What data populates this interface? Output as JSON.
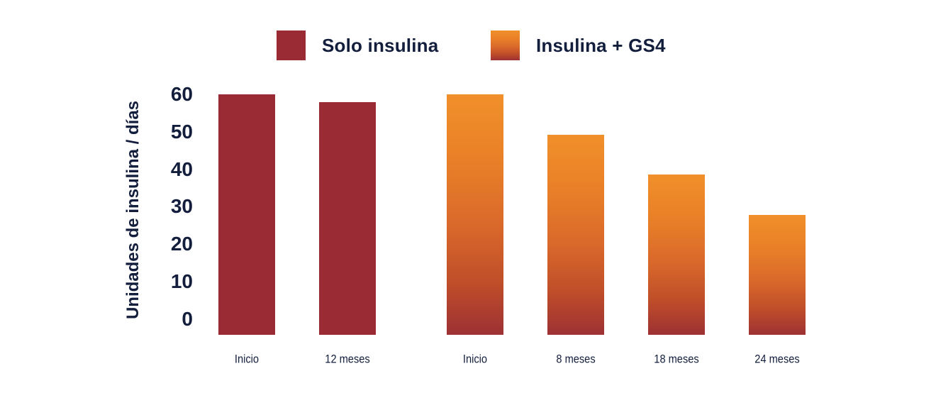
{
  "colors": {
    "navy_text": "#131e3c",
    "red_solid": "#9a2a33",
    "orange_top": "#f1902a",
    "orange_bottom": "#9d3134",
    "background": "#ffffff"
  },
  "chart_data": {
    "type": "bar",
    "title": "",
    "ylabel": "Unidades de insulina / días",
    "xlabel": "",
    "ylim": [
      0,
      60
    ],
    "yticks": [
      60,
      50,
      40,
      30,
      20,
      10,
      0
    ],
    "grid": false,
    "legend_position": "top",
    "series": [
      {
        "name": "Solo insulina",
        "fill": "solid",
        "color": "#9a2a33",
        "categories": [
          "Inicio",
          "12 meses"
        ],
        "values": [
          60,
          58
        ]
      },
      {
        "name": "Insulina + GS4",
        "fill": "gradient",
        "gradient_stops": [
          {
            "color": "#f1902a",
            "pos": 0
          },
          {
            "color": "#e87e28",
            "pos": 30
          },
          {
            "color": "#d9682b",
            "pos": 55
          },
          {
            "color": "#c04e29",
            "pos": 78
          },
          {
            "color": "#9d3134",
            "pos": 100
          }
        ],
        "categories": [
          "Inicio",
          "8 meses",
          "18 meses",
          "24 meses"
        ],
        "values": [
          60,
          50,
          40,
          30
        ]
      }
    ]
  }
}
